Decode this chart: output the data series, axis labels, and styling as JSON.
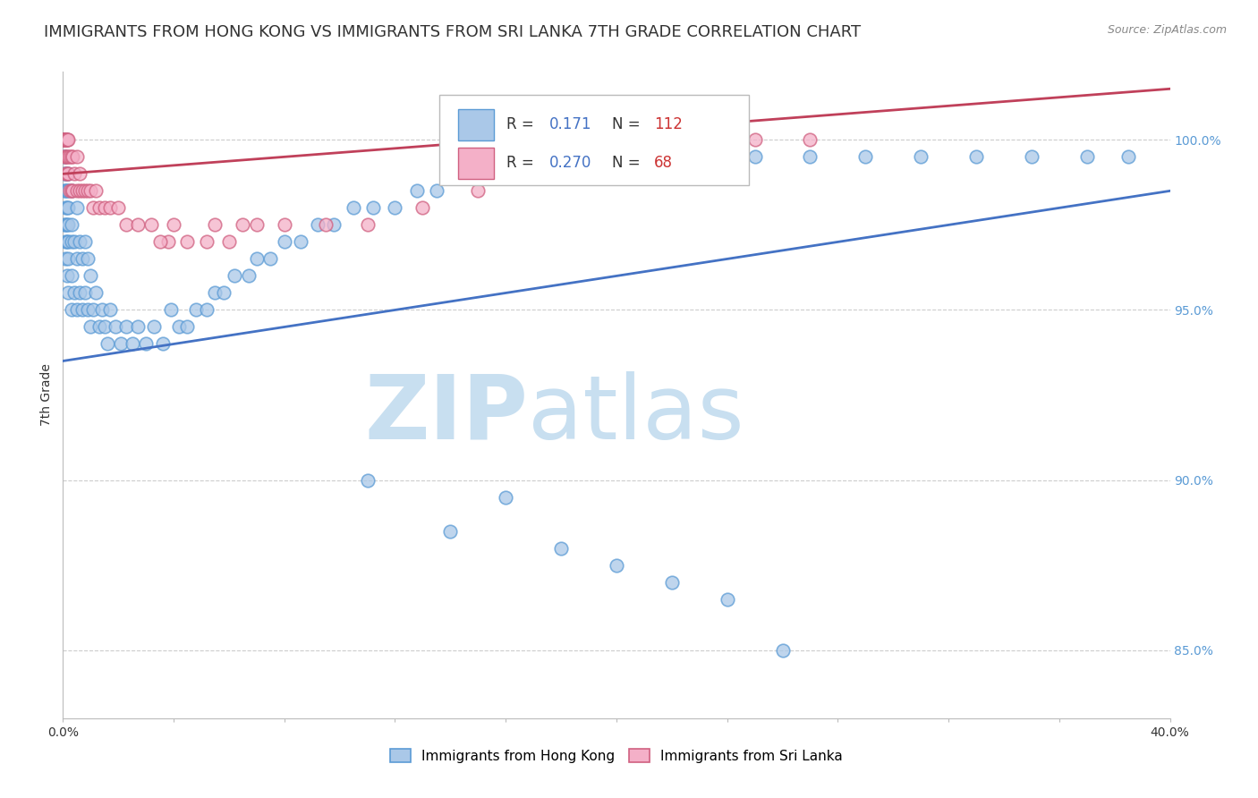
{
  "title": "IMMIGRANTS FROM HONG KONG VS IMMIGRANTS FROM SRI LANKA 7TH GRADE CORRELATION CHART",
  "source": "Source: ZipAtlas.com",
  "ylabel": "7th Grade",
  "xlim": [
    0.0,
    40.0
  ],
  "ylim": [
    83.0,
    102.0
  ],
  "yticks": [
    85.0,
    90.0,
    95.0,
    100.0
  ],
  "xtick_positions": [
    0.0,
    4.0,
    8.0,
    12.0,
    16.0,
    20.0,
    24.0,
    28.0,
    32.0,
    36.0,
    40.0
  ],
  "xtick_labels_show": {
    "0.0": "0.0%",
    "40.0": "40.0%"
  },
  "series1_label": "Immigrants from Hong Kong",
  "series1_color": "#aac8e8",
  "series1_edge": "#5b9bd5",
  "series1_R": 0.171,
  "series1_N": 112,
  "series1_line_color": "#4472c4",
  "series2_label": "Immigrants from Sri Lanka",
  "series2_color": "#f4b0c8",
  "series2_edge": "#d06080",
  "series2_R": 0.27,
  "series2_N": 68,
  "series2_line_color": "#c0405a",
  "watermark_zip": "ZIP",
  "watermark_atlas": "atlas",
  "watermark_color": "#c8dff0",
  "background_color": "#ffffff",
  "title_fontsize": 13,
  "axis_label_fontsize": 10,
  "tick_fontsize": 10,
  "ytick_color": "#5b9bd5",
  "xtick_color": "#333333",
  "legend_R_color": "#333333",
  "legend_val_color": "#4472c4",
  "legend_N_color": "#cc3333",
  "hk_x": [
    0.05,
    0.05,
    0.05,
    0.05,
    0.05,
    0.05,
    0.05,
    0.05,
    0.05,
    0.05,
    0.05,
    0.1,
    0.1,
    0.1,
    0.1,
    0.1,
    0.1,
    0.1,
    0.1,
    0.15,
    0.15,
    0.15,
    0.15,
    0.15,
    0.15,
    0.15,
    0.2,
    0.2,
    0.2,
    0.2,
    0.2,
    0.2,
    0.2,
    0.3,
    0.3,
    0.3,
    0.3,
    0.3,
    0.4,
    0.4,
    0.5,
    0.5,
    0.5,
    0.6,
    0.6,
    0.7,
    0.7,
    0.8,
    0.8,
    0.9,
    0.9,
    1.0,
    1.0,
    1.1,
    1.2,
    1.3,
    1.4,
    1.5,
    1.6,
    1.7,
    1.9,
    2.1,
    2.3,
    2.5,
    2.7,
    3.0,
    3.3,
    3.6,
    3.9,
    4.2,
    4.5,
    4.8,
    5.2,
    5.5,
    5.8,
    6.2,
    6.7,
    7.0,
    7.5,
    8.0,
    8.6,
    9.2,
    9.8,
    10.5,
    11.2,
    12.0,
    12.8,
    13.5,
    14.5,
    15.5,
    16.5,
    17.5,
    18.5,
    19.5,
    21.0,
    23.0,
    25.0,
    27.0,
    29.0,
    31.0,
    33.0,
    35.0,
    37.0,
    38.5,
    11.0,
    14.0,
    16.0,
    18.0,
    20.0,
    22.0,
    24.0,
    26.0
  ],
  "hk_y": [
    97.5,
    98.5,
    99.0,
    99.5,
    100.0,
    100.0,
    100.0,
    100.0,
    100.0,
    100.0,
    100.0,
    96.5,
    97.0,
    97.5,
    98.0,
    98.5,
    99.0,
    99.5,
    100.0,
    96.0,
    97.0,
    97.5,
    98.0,
    98.5,
    99.0,
    100.0,
    95.5,
    96.5,
    97.0,
    97.5,
    98.0,
    98.5,
    99.0,
    95.0,
    96.0,
    97.0,
    97.5,
    98.5,
    95.5,
    97.0,
    95.0,
    96.5,
    98.0,
    95.5,
    97.0,
    95.0,
    96.5,
    95.5,
    97.0,
    95.0,
    96.5,
    94.5,
    96.0,
    95.0,
    95.5,
    94.5,
    95.0,
    94.5,
    94.0,
    95.0,
    94.5,
    94.0,
    94.5,
    94.0,
    94.5,
    94.0,
    94.5,
    94.0,
    95.0,
    94.5,
    94.5,
    95.0,
    95.0,
    95.5,
    95.5,
    96.0,
    96.0,
    96.5,
    96.5,
    97.0,
    97.0,
    97.5,
    97.5,
    98.0,
    98.0,
    98.0,
    98.5,
    98.5,
    99.0,
    99.0,
    99.0,
    99.0,
    99.0,
    99.0,
    99.0,
    99.5,
    99.5,
    99.5,
    99.5,
    99.5,
    99.5,
    99.5,
    99.5,
    99.5,
    90.0,
    88.5,
    89.5,
    88.0,
    87.5,
    87.0,
    86.5,
    85.0
  ],
  "sl_x": [
    0.05,
    0.05,
    0.05,
    0.05,
    0.05,
    0.05,
    0.05,
    0.05,
    0.05,
    0.05,
    0.1,
    0.1,
    0.1,
    0.1,
    0.1,
    0.1,
    0.1,
    0.15,
    0.15,
    0.15,
    0.15,
    0.2,
    0.2,
    0.2,
    0.25,
    0.25,
    0.3,
    0.3,
    0.35,
    0.35,
    0.4,
    0.5,
    0.5,
    0.6,
    0.6,
    0.7,
    0.8,
    0.9,
    1.0,
    1.1,
    1.2,
    1.3,
    1.5,
    1.7,
    2.0,
    2.3,
    2.7,
    3.2,
    3.8,
    4.5,
    5.2,
    6.0,
    7.0,
    8.0,
    9.5,
    11.0,
    13.0,
    15.0,
    17.0,
    19.0,
    21.0,
    23.0,
    25.0,
    27.0,
    3.5,
    4.0,
    5.5,
    6.5
  ],
  "sl_y": [
    99.5,
    100.0,
    100.0,
    100.0,
    100.0,
    100.0,
    100.0,
    100.0,
    100.0,
    100.0,
    99.0,
    99.5,
    100.0,
    100.0,
    100.0,
    100.0,
    100.0,
    99.0,
    99.5,
    100.0,
    100.0,
    99.0,
    99.5,
    100.0,
    98.5,
    99.5,
    98.5,
    99.5,
    98.5,
    99.5,
    99.0,
    98.5,
    99.5,
    98.5,
    99.0,
    98.5,
    98.5,
    98.5,
    98.5,
    98.0,
    98.5,
    98.0,
    98.0,
    98.0,
    98.0,
    97.5,
    97.5,
    97.5,
    97.0,
    97.0,
    97.0,
    97.0,
    97.5,
    97.5,
    97.5,
    97.5,
    98.0,
    98.5,
    99.0,
    99.5,
    100.0,
    100.0,
    100.0,
    100.0,
    97.0,
    97.5,
    97.5,
    97.5
  ],
  "hk_line_x0": 0.0,
  "hk_line_y0": 93.5,
  "hk_line_x1": 40.0,
  "hk_line_y1": 98.5,
  "sl_line_x0": 0.0,
  "sl_line_y0": 99.0,
  "sl_line_x1": 40.0,
  "sl_line_y1": 101.5
}
